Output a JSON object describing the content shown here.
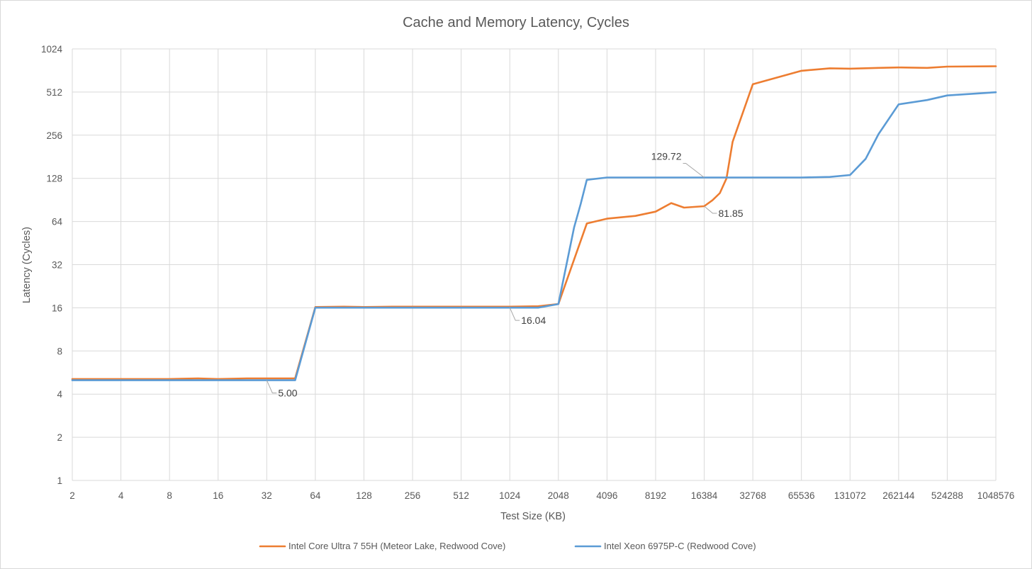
{
  "chart_data": {
    "type": "line",
    "title": "Cache and Memory Latency, Cycles",
    "xlabel": "Test Size (KB)",
    "ylabel": "Latency (Cycles)",
    "x_scale": "log2",
    "y_scale": "log2",
    "xlim": [
      2,
      1048576
    ],
    "ylim": [
      1,
      1024
    ],
    "x_ticks": [
      "2",
      "4",
      "8",
      "16",
      "32",
      "64",
      "128",
      "256",
      "512",
      "1024",
      "2048",
      "4096",
      "8192",
      "16384",
      "32768",
      "65536",
      "131072",
      "262144",
      "524288",
      "1048576"
    ],
    "y_ticks": [
      "1",
      "2",
      "4",
      "8",
      "16",
      "32",
      "64",
      "128",
      "256",
      "512",
      "1024"
    ],
    "grid": true,
    "legend_position": "bottom",
    "series": [
      {
        "name": "Intel Core Ultra 7 55H (Meteor Lake, Redwood Cove)",
        "color": "#ed7d31",
        "points": [
          [
            2,
            5.1
          ],
          [
            4,
            5.1
          ],
          [
            8,
            5.1
          ],
          [
            12,
            5.15
          ],
          [
            16,
            5.1
          ],
          [
            24,
            5.15
          ],
          [
            32,
            5.15
          ],
          [
            48,
            5.15
          ],
          [
            64,
            16.2
          ],
          [
            96,
            16.3
          ],
          [
            128,
            16.2
          ],
          [
            192,
            16.3
          ],
          [
            256,
            16.3
          ],
          [
            384,
            16.3
          ],
          [
            512,
            16.3
          ],
          [
            768,
            16.3
          ],
          [
            1024,
            16.3
          ],
          [
            1536,
            16.4
          ],
          [
            2048,
            17.0
          ],
          [
            3072,
            62
          ],
          [
            4096,
            67
          ],
          [
            6144,
            70
          ],
          [
            8192,
            75
          ],
          [
            10240,
            86
          ],
          [
            12288,
            80
          ],
          [
            16384,
            81.85
          ],
          [
            18432,
            90
          ],
          [
            20480,
            101
          ],
          [
            22528,
            128
          ],
          [
            24576,
            230
          ],
          [
            32768,
            580
          ],
          [
            65536,
            720
          ],
          [
            98304,
            750
          ],
          [
            131072,
            745
          ],
          [
            196608,
            755
          ],
          [
            262144,
            760
          ],
          [
            393216,
            755
          ],
          [
            524288,
            770
          ],
          [
            1048576,
            775
          ]
        ]
      },
      {
        "name": "Intel Xeon 6975P-C (Redwood Cove)",
        "color": "#5b9bd5",
        "points": [
          [
            2,
            5.0
          ],
          [
            4,
            5.0
          ],
          [
            8,
            5.0
          ],
          [
            16,
            5.0
          ],
          [
            32,
            5.0
          ],
          [
            48,
            5.0
          ],
          [
            64,
            16.04
          ],
          [
            128,
            16.04
          ],
          [
            256,
            16.04
          ],
          [
            512,
            16.04
          ],
          [
            1024,
            16.04
          ],
          [
            1536,
            16.04
          ],
          [
            2048,
            17.0
          ],
          [
            2560,
            58
          ],
          [
            2816,
            85
          ],
          [
            3072,
            125
          ],
          [
            4096,
            129.72
          ],
          [
            8192,
            129.72
          ],
          [
            16384,
            129.72
          ],
          [
            32768,
            129.72
          ],
          [
            65536,
            129.72
          ],
          [
            98304,
            131
          ],
          [
            131072,
            135
          ],
          [
            163840,
            175
          ],
          [
            196608,
            260
          ],
          [
            262144,
            420
          ],
          [
            393216,
            450
          ],
          [
            524288,
            485
          ],
          [
            1048576,
            510
          ]
        ]
      }
    ],
    "annotations": [
      {
        "label": "5.00",
        "series": 1,
        "x": 32,
        "y": 5.0
      },
      {
        "label": "16.04",
        "series": 1,
        "x": 1024,
        "y": 16.04
      },
      {
        "label": "129.72",
        "series": 1,
        "x": 16384,
        "y": 129.72
      },
      {
        "label": "81.85",
        "series": 0,
        "x": 16384,
        "y": 81.85
      }
    ]
  }
}
